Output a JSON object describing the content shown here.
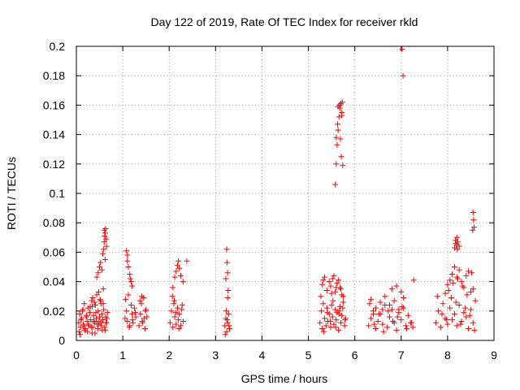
{
  "chart_data": {
    "type": "scatter",
    "title": "Day 122 of 2019, Rate Of TEC Index for receiver rkld",
    "xlabel": "GPS time / hours",
    "ylabel": "ROTI / TECUs",
    "xlim": [
      0,
      9
    ],
    "ylim": [
      0,
      0.2
    ],
    "xticks": [
      0,
      1,
      2,
      3,
      4,
      5,
      6,
      7,
      8,
      9
    ],
    "xtick_labels": [
      "0",
      "1",
      "2",
      "3",
      "4",
      "5",
      "6",
      "7",
      "8",
      "9"
    ],
    "yticks": [
      0,
      0.02,
      0.04,
      0.06,
      0.08,
      0.1,
      0.12,
      0.14,
      0.16,
      0.18,
      0.2
    ],
    "ytick_labels": [
      "0",
      "0.02",
      "0.04",
      "0.06",
      "0.08",
      "0.1",
      "0.12",
      "0.14",
      "0.16",
      "0.18",
      "0.2"
    ],
    "grid": true,
    "marker": "+",
    "series": [
      {
        "name": "ROTI",
        "color": "#ff0000",
        "x": [
          0.05,
          0.07,
          0.09,
          0.11,
          0.13,
          0.15,
          0.17,
          0.19,
          0.21,
          0.23,
          0.25,
          0.27,
          0.29,
          0.31,
          0.33,
          0.35,
          0.37,
          0.39,
          0.41,
          0.43,
          0.45,
          0.47,
          0.49,
          0.51,
          0.53,
          0.55,
          0.57,
          0.59,
          0.61,
          0.63,
          0.65,
          0.67,
          0.06,
          0.1,
          0.14,
          0.18,
          0.22,
          0.26,
          0.3,
          0.34,
          0.38,
          0.42,
          0.46,
          0.5,
          0.54,
          0.58,
          0.62,
          0.66,
          0.08,
          0.16,
          0.24,
          0.32,
          0.4,
          0.48,
          0.56,
          0.64,
          0.44,
          0.47,
          0.5,
          0.52,
          0.55,
          0.57,
          0.59,
          0.6,
          0.61,
          0.62,
          0.63,
          0.64,
          0.65,
          0.62,
          0.58,
          0.6,
          0.35,
          0.39,
          0.34,
          0.44,
          0.48,
          0.52,
          0.53,
          1.05,
          1.08,
          1.1,
          1.12,
          1.15,
          1.18,
          1.2,
          1.22,
          1.25,
          1.28,
          1.06,
          1.14,
          1.21,
          1.27,
          1.08,
          1.1,
          1.12,
          1.15,
          1.18,
          1.2,
          1.1,
          1.16,
          1.35,
          1.38,
          1.4,
          1.42,
          1.45,
          1.48,
          1.5,
          1.52,
          1.37,
          1.43,
          1.49,
          1.41,
          1.46,
          2.02,
          2.05,
          2.08,
          2.1,
          2.12,
          2.15,
          2.18,
          2.2,
          2.22,
          2.25,
          2.28,
          2.3,
          2.07,
          2.14,
          2.21,
          2.27,
          2.11,
          2.08,
          2.12,
          2.15,
          2.18,
          2.2,
          2.22,
          2.25,
          2.3,
          2.38,
          3.2,
          3.22,
          3.24,
          3.26,
          3.28,
          3.3,
          3.21,
          3.25,
          3.29,
          3.23,
          3.24,
          3.25,
          3.26,
          3.22,
          3.27,
          3.26,
          5.25,
          5.28,
          5.3,
          5.32,
          5.35,
          5.38,
          5.4,
          5.42,
          5.45,
          5.48,
          5.5,
          5.52,
          5.55,
          5.58,
          5.6,
          5.62,
          5.65,
          5.68,
          5.7,
          5.72,
          5.75,
          5.78,
          5.8,
          5.27,
          5.33,
          5.41,
          5.47,
          5.53,
          5.59,
          5.66,
          5.74,
          5.79,
          5.3,
          5.35,
          5.4,
          5.45,
          5.5,
          5.55,
          5.6,
          5.65,
          5.7,
          5.75,
          5.32,
          5.48,
          5.52,
          5.58,
          5.62,
          5.68,
          5.72,
          5.66,
          5.58,
          5.6,
          5.62,
          5.64,
          5.66,
          5.68,
          5.7,
          5.72,
          5.63,
          5.67,
          5.69,
          5.71,
          5.6,
          5.64,
          5.73,
          5.74,
          5.72,
          6.3,
          6.35,
          6.4,
          6.45,
          6.5,
          6.55,
          6.6,
          6.65,
          6.7,
          6.75,
          6.8,
          6.85,
          6.9,
          6.95,
          7.0,
          7.05,
          7.1,
          7.15,
          7.2,
          7.25,
          6.32,
          6.42,
          6.52,
          6.62,
          6.72,
          6.82,
          6.92,
          7.02,
          7.12,
          7.22,
          6.35,
          6.45,
          6.55,
          6.65,
          6.75,
          6.85,
          6.95,
          7.0,
          7.05,
          6.8,
          6.9,
          6.4,
          6.6,
          7.02,
          7.04,
          7.27,
          7.75,
          7.8,
          7.85,
          7.9,
          7.95,
          8.0,
          8.05,
          8.1,
          8.15,
          8.2,
          8.25,
          8.3,
          8.35,
          8.4,
          8.45,
          8.5,
          8.55,
          8.6,
          7.78,
          7.88,
          7.98,
          8.08,
          8.18,
          8.28,
          8.38,
          8.48,
          8.58,
          7.95,
          8.0,
          8.05,
          8.1,
          8.15,
          8.2,
          8.25,
          8.3,
          8.35,
          8.4,
          8.45,
          8.5,
          8.55,
          8.02,
          8.12,
          8.22,
          8.32,
          8.42,
          8.52,
          8.15,
          8.18,
          8.2,
          8.22,
          8.25,
          8.17,
          8.21,
          8.19,
          8.55,
          8.56,
          8.57,
          8.54
        ],
        "y": [
          0.012,
          0.018,
          0.009,
          0.015,
          0.02,
          0.011,
          0.025,
          0.008,
          0.016,
          0.013,
          0.022,
          0.01,
          0.019,
          0.014,
          0.027,
          0.009,
          0.017,
          0.012,
          0.024,
          0.015,
          0.011,
          0.02,
          0.013,
          0.028,
          0.01,
          0.018,
          0.014,
          0.021,
          0.009,
          0.016,
          0.012,
          0.019,
          0.006,
          0.014,
          0.021,
          0.007,
          0.017,
          0.011,
          0.023,
          0.005,
          0.013,
          0.019,
          0.008,
          0.016,
          0.012,
          0.025,
          0.007,
          0.015,
          0.004,
          0.01,
          0.006,
          0.009,
          0.005,
          0.011,
          0.007,
          0.012,
          0.043,
          0.046,
          0.05,
          0.053,
          0.048,
          0.059,
          0.062,
          0.067,
          0.071,
          0.073,
          0.076,
          0.069,
          0.064,
          0.055,
          0.035,
          0.075,
          0.029,
          0.026,
          0.023,
          0.031,
          0.033,
          0.027,
          0.025,
          0.015,
          0.02,
          0.013,
          0.031,
          0.01,
          0.024,
          0.018,
          0.012,
          0.022,
          0.016,
          0.028,
          0.009,
          0.014,
          0.019,
          0.061,
          0.054,
          0.05,
          0.045,
          0.04,
          0.037,
          0.058,
          0.042,
          0.01,
          0.018,
          0.025,
          0.013,
          0.029,
          0.008,
          0.021,
          0.016,
          0.027,
          0.012,
          0.02,
          0.03,
          0.015,
          0.012,
          0.02,
          0.009,
          0.025,
          0.016,
          0.011,
          0.022,
          0.014,
          0.018,
          0.01,
          0.024,
          0.013,
          0.03,
          0.019,
          0.008,
          0.021,
          0.027,
          0.036,
          0.043,
          0.047,
          0.051,
          0.054,
          0.049,
          0.044,
          0.04,
          0.054,
          0.01,
          0.015,
          0.006,
          0.012,
          0.018,
          0.008,
          0.004,
          0.014,
          0.01,
          0.02,
          0.062,
          0.053,
          0.046,
          0.042,
          0.034,
          0.029,
          0.012,
          0.02,
          0.008,
          0.025,
          0.015,
          0.01,
          0.022,
          0.013,
          0.018,
          0.009,
          0.024,
          0.016,
          0.011,
          0.021,
          0.014,
          0.019,
          0.007,
          0.023,
          0.012,
          0.017,
          0.026,
          0.01,
          0.015,
          0.03,
          0.006,
          0.019,
          0.013,
          0.027,
          0.009,
          0.018,
          0.022,
          0.014,
          0.038,
          0.043,
          0.034,
          0.04,
          0.032,
          0.044,
          0.036,
          0.041,
          0.035,
          0.03,
          0.041,
          0.037,
          0.042,
          0.033,
          0.039,
          0.036,
          0.031,
          0.02,
          0.106,
          0.12,
          0.133,
          0.143,
          0.152,
          0.158,
          0.161,
          0.155,
          0.147,
          0.16,
          0.137,
          0.125,
          0.138,
          0.159,
          0.162,
          0.119,
          0.153,
          0.01,
          0.015,
          0.02,
          0.008,
          0.013,
          0.018,
          0.011,
          0.024,
          0.009,
          0.016,
          0.021,
          0.012,
          0.007,
          0.019,
          0.014,
          0.022,
          0.01,
          0.017,
          0.012,
          0.009,
          0.025,
          0.011,
          0.018,
          0.006,
          0.02,
          0.013,
          0.016,
          0.023,
          0.008,
          0.012,
          0.028,
          0.022,
          0.026,
          0.03,
          0.024,
          0.027,
          0.021,
          0.033,
          0.029,
          0.035,
          0.037,
          0.018,
          0.021,
          0.198,
          0.18,
          0.041,
          0.012,
          0.02,
          0.009,
          0.025,
          0.015,
          0.011,
          0.022,
          0.014,
          0.018,
          0.01,
          0.024,
          0.013,
          0.019,
          0.016,
          0.008,
          0.021,
          0.012,
          0.027,
          0.03,
          0.018,
          0.014,
          0.029,
          0.026,
          0.011,
          0.022,
          0.017,
          0.007,
          0.032,
          0.038,
          0.041,
          0.045,
          0.05,
          0.043,
          0.048,
          0.04,
          0.036,
          0.044,
          0.047,
          0.033,
          0.035,
          0.034,
          0.039,
          0.042,
          0.037,
          0.031,
          0.046,
          0.063,
          0.066,
          0.07,
          0.067,
          0.064,
          0.068,
          0.062,
          0.065,
          0.087,
          0.082,
          0.077,
          0.075
        ]
      }
    ]
  }
}
